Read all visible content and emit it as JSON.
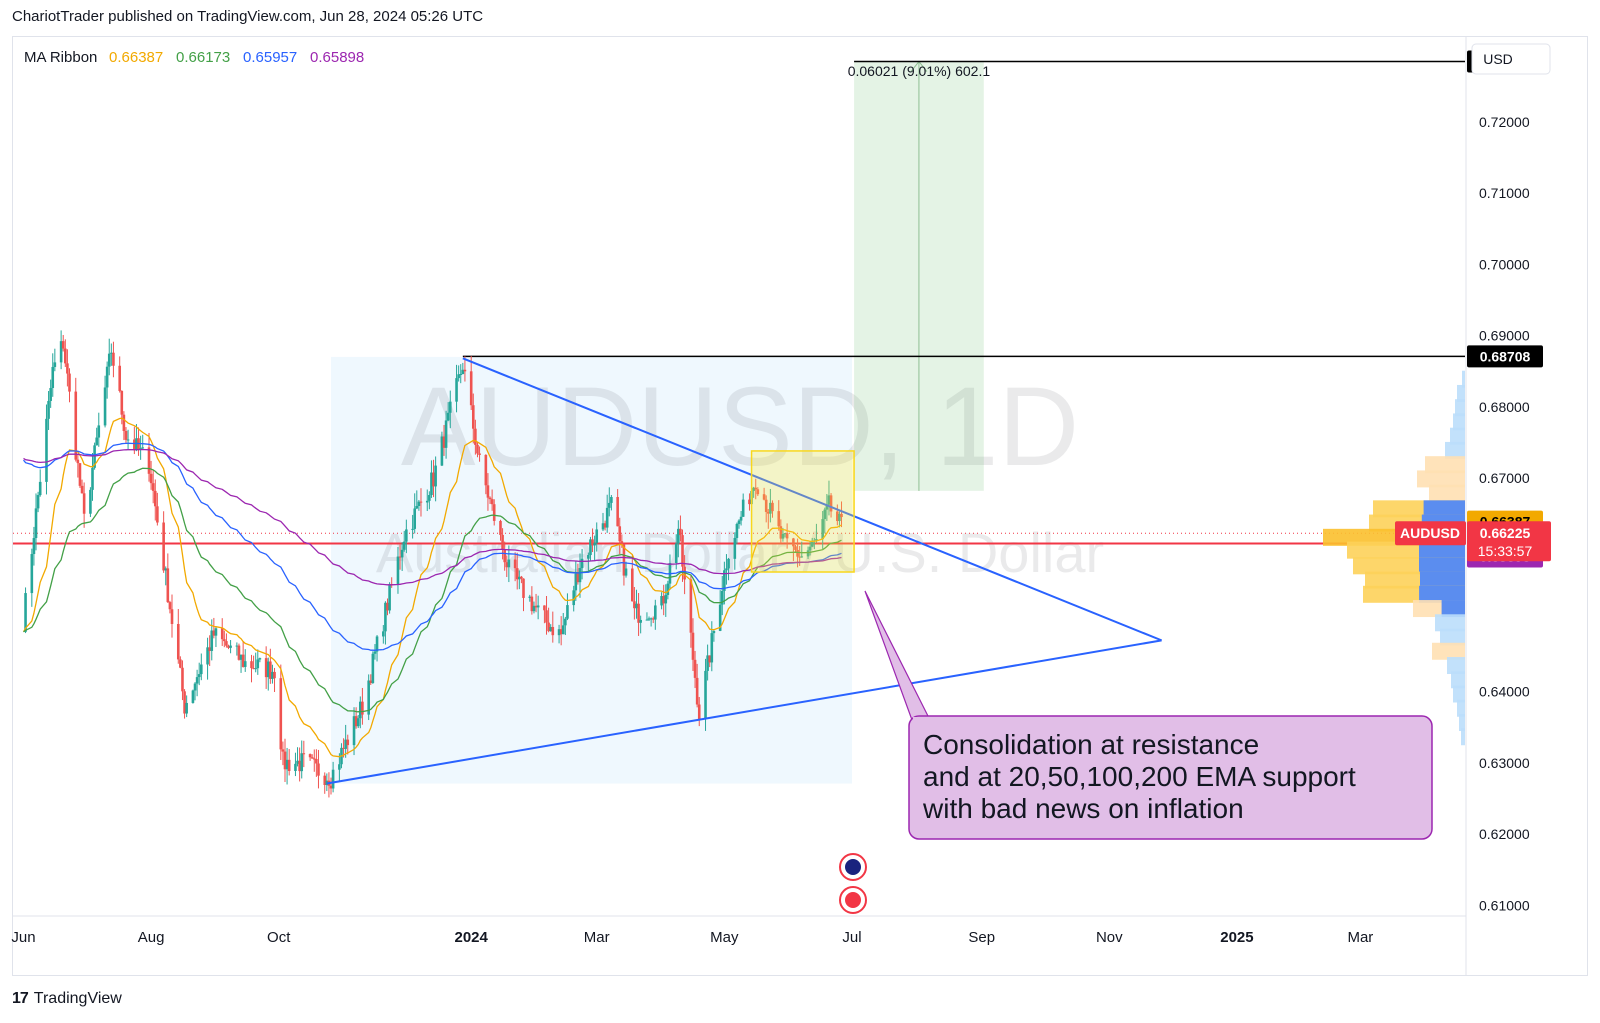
{
  "header": {
    "publish_info": "ChariotTrader published on TradingView.com, Jun 28, 2024 05:26 UTC"
  },
  "footer": {
    "logo_mark": "17",
    "logo_text": "TradingView"
  },
  "legend": {
    "label": "MA Ribbon",
    "values": [
      {
        "text": "0.66387",
        "color": "#f2a900"
      },
      {
        "text": "0.66173",
        "color": "#43a047"
      },
      {
        "text": "0.65957",
        "color": "#2962ff"
      },
      {
        "text": "0.65898",
        "color": "#9c27b0"
      }
    ]
  },
  "currency": "USD",
  "watermark": {
    "symbol": "AUDUSD, 1D",
    "description": "Australian Dollar / U.S. Dollar"
  },
  "measure_label": "0.06021 (9.01%) 602.1",
  "annotation": {
    "lines": [
      "Consolidation at resistance",
      "and at 20,50,100,200 EMA support",
      "with bad news on inflation"
    ]
  },
  "chart_data": {
    "type": "candlestick",
    "symbol": "AUDUSD",
    "timeframe": "1D",
    "y_range": [
      0.6085,
      0.7315
    ],
    "x_range": [
      "2023-05-27",
      "2025-04-20"
    ],
    "y_ticks": [
      "0.72000",
      "0.71000",
      "0.70000",
      "0.69000",
      "0.68000",
      "0.67000",
      "0.64000",
      "0.63000",
      "0.62000",
      "0.61000"
    ],
    "y_ticks_values": [
      0.72,
      0.71,
      0.7,
      0.69,
      0.68,
      0.67,
      0.64,
      0.63,
      0.62,
      0.61
    ],
    "x_ticks": [
      {
        "label": "Jun",
        "date": "2023-06-01",
        "bold": false
      },
      {
        "label": "Aug",
        "date": "2023-08-01",
        "bold": false
      },
      {
        "label": "Oct",
        "date": "2023-10-01",
        "bold": false
      },
      {
        "label": "2024",
        "date": "2024-01-01",
        "bold": true
      },
      {
        "label": "Mar",
        "date": "2024-03-01",
        "bold": false
      },
      {
        "label": "May",
        "date": "2024-05-01",
        "bold": false
      },
      {
        "label": "Jul",
        "date": "2024-07-01",
        "bold": false
      },
      {
        "label": "Sep",
        "date": "2024-09-01",
        "bold": false
      },
      {
        "label": "Nov",
        "date": "2024-11-01",
        "bold": false
      },
      {
        "label": "2025",
        "date": "2025-01-01",
        "bold": true
      },
      {
        "label": "Mar",
        "date": "2025-03-01",
        "bold": false
      }
    ],
    "close_path": [
      [
        "2023-06-01",
        0.65
      ],
      [
        "2023-06-15",
        0.685
      ],
      [
        "2023-06-20",
        0.689
      ],
      [
        "2023-06-30",
        0.664
      ],
      [
        "2023-07-13",
        0.688
      ],
      [
        "2023-07-20",
        0.676
      ],
      [
        "2023-07-31",
        0.672
      ],
      [
        "2023-08-10",
        0.652
      ],
      [
        "2023-08-17",
        0.638
      ],
      [
        "2023-08-31",
        0.648
      ],
      [
        "2023-09-15",
        0.644
      ],
      [
        "2023-09-29",
        0.643
      ],
      [
        "2023-10-03",
        0.63
      ],
      [
        "2023-10-13",
        0.63
      ],
      [
        "2023-10-26",
        0.628
      ],
      [
        "2023-11-10",
        0.638
      ],
      [
        "2023-11-30",
        0.662
      ],
      [
        "2023-12-14",
        0.67
      ],
      [
        "2023-12-28",
        0.686
      ],
      [
        "2024-01-05",
        0.672
      ],
      [
        "2024-01-19",
        0.657
      ],
      [
        "2024-02-05",
        0.65
      ],
      [
        "2024-02-13",
        0.648
      ],
      [
        "2024-02-22",
        0.658
      ],
      [
        "2024-03-08",
        0.666
      ],
      [
        "2024-03-19",
        0.651
      ],
      [
        "2024-04-01",
        0.652
      ],
      [
        "2024-04-09",
        0.663
      ],
      [
        "2024-04-19",
        0.637
      ],
      [
        "2024-05-03",
        0.66
      ],
      [
        "2024-05-16",
        0.67
      ],
      [
        "2024-05-29",
        0.661
      ],
      [
        "2024-06-07",
        0.659
      ],
      [
        "2024-06-14",
        0.661
      ],
      [
        "2024-06-20",
        0.666
      ],
      [
        "2024-06-27",
        0.6625
      ]
    ],
    "levels": {
      "resistance_top": 0.68708,
      "target": 0.72848,
      "current": 0.66225,
      "countdown": "15:33:57",
      "symbol_label": "AUDUSD",
      "red_line": 0.66081,
      "ema_20": 0.66387,
      "ema_50": 0.66173,
      "ema_100": 0.65957,
      "ema_200": 0.65898
    },
    "price_labels": [
      {
        "text": "0.72848",
        "value": 0.72848,
        "bg": "#000000",
        "fg": "#ffffff"
      },
      {
        "text": "0.68708",
        "value": 0.68708,
        "bg": "#000000",
        "fg": "#ffffff"
      },
      {
        "text": "0.66387",
        "value": 0.66387,
        "bg": "#f2a900",
        "fg": "#000000"
      },
      {
        "text": "0.66173",
        "value": 0.66173,
        "bg": "#43a047",
        "fg": "#ffffff"
      },
      {
        "text": "0.66081",
        "value": 0.66081,
        "bg": "#f23645",
        "fg": "#ffffff"
      },
      {
        "text": "0.65957",
        "value": 0.65957,
        "bg": "#2962ff",
        "fg": "#ffffff"
      },
      {
        "text": "0.65898",
        "value": 0.65898,
        "bg": "#9c27b0",
        "fg": "#ffffff"
      }
    ],
    "triangle": {
      "upper": [
        [
          "2023-12-28",
          0.6868
        ],
        [
          "2024-11-26",
          0.6472
        ]
      ],
      "lower": [
        [
          "2023-10-24",
          0.6271
        ],
        [
          "2024-11-26",
          0.6472
        ]
      ]
    },
    "consolidation_box": {
      "from": "2024-05-14",
      "to": "2024-07-02",
      "high": 0.6738,
      "low": 0.6568
    },
    "profit_zone": {
      "from": "2024-07-02",
      "to": "2024-09-02",
      "entry": 0.6682,
      "target": 0.72848
    },
    "pattern_shade": {
      "from": "2023-10-26",
      "to": "2024-07-01",
      "high": 0.687,
      "low": 0.6271
    }
  },
  "colors": {
    "up": "#26a69a",
    "down": "#ef5350",
    "triangle": "#2962ff",
    "ema_20": "#f2a900",
    "ema_50": "#43a047",
    "ema_100": "#2962ff",
    "ema_200": "#9c27b0"
  }
}
